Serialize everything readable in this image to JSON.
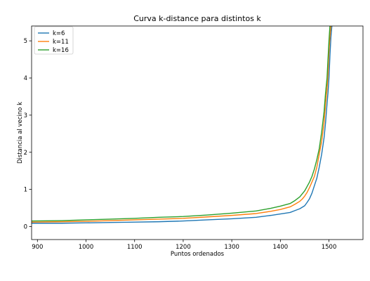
{
  "chart_data": {
    "type": "line",
    "title": "Curva k-distance para distintos k",
    "xlabel": "Puntos ordenados",
    "ylabel": "Distancia al vecino k",
    "xlim": [
      888,
      1570
    ],
    "ylim": [
      -0.35,
      5.4
    ],
    "xticks": [
      900,
      1000,
      1100,
      1200,
      1300,
      1400,
      1500
    ],
    "yticks": [
      0,
      1,
      2,
      3,
      4,
      5
    ],
    "grid": false,
    "legend_position": "top-left",
    "series": [
      {
        "name": "k=6",
        "color": "#1f77b4",
        "x": [
          888,
          950,
          1000,
          1050,
          1100,
          1150,
          1200,
          1250,
          1300,
          1350,
          1380,
          1400,
          1420,
          1430,
          1440,
          1445,
          1450,
          1455,
          1460,
          1465,
          1470,
          1475,
          1480,
          1485,
          1490,
          1493,
          1496,
          1498,
          1500,
          1502,
          1504,
          1506
        ],
        "y": [
          0.09,
          0.09,
          0.1,
          0.11,
          0.12,
          0.13,
          0.15,
          0.18,
          0.21,
          0.25,
          0.3,
          0.34,
          0.38,
          0.43,
          0.48,
          0.52,
          0.56,
          0.65,
          0.75,
          0.9,
          1.1,
          1.3,
          1.6,
          1.95,
          2.4,
          2.8,
          3.3,
          3.6,
          4.0,
          4.6,
          5.1,
          5.4
        ]
      },
      {
        "name": "k=11",
        "color": "#ff7f0e",
        "x": [
          888,
          950,
          1000,
          1050,
          1100,
          1150,
          1200,
          1250,
          1300,
          1350,
          1380,
          1400,
          1420,
          1430,
          1440,
          1445,
          1450,
          1455,
          1460,
          1465,
          1470,
          1475,
          1480,
          1485,
          1490,
          1493,
          1496,
          1498,
          1500,
          1502,
          1504
        ],
        "y": [
          0.12,
          0.13,
          0.14,
          0.16,
          0.18,
          0.2,
          0.22,
          0.26,
          0.3,
          0.35,
          0.41,
          0.46,
          0.53,
          0.6,
          0.68,
          0.74,
          0.82,
          0.92,
          1.05,
          1.2,
          1.35,
          1.6,
          1.95,
          2.3,
          2.8,
          3.3,
          3.7,
          4.1,
          4.7,
          5.1,
          5.4
        ]
      },
      {
        "name": "k=16",
        "color": "#2ca02c",
        "x": [
          888,
          950,
          1000,
          1050,
          1100,
          1150,
          1200,
          1250,
          1300,
          1350,
          1380,
          1400,
          1420,
          1430,
          1440,
          1445,
          1450,
          1455,
          1460,
          1465,
          1470,
          1475,
          1480,
          1485,
          1490,
          1493,
          1496,
          1498,
          1500,
          1502
        ],
        "y": [
          0.15,
          0.16,
          0.18,
          0.2,
          0.22,
          0.25,
          0.27,
          0.31,
          0.36,
          0.42,
          0.49,
          0.55,
          0.62,
          0.7,
          0.8,
          0.88,
          0.96,
          1.08,
          1.2,
          1.35,
          1.55,
          1.8,
          2.1,
          2.55,
          3.1,
          3.6,
          4.0,
          4.5,
          5.0,
          5.4
        ]
      }
    ]
  }
}
